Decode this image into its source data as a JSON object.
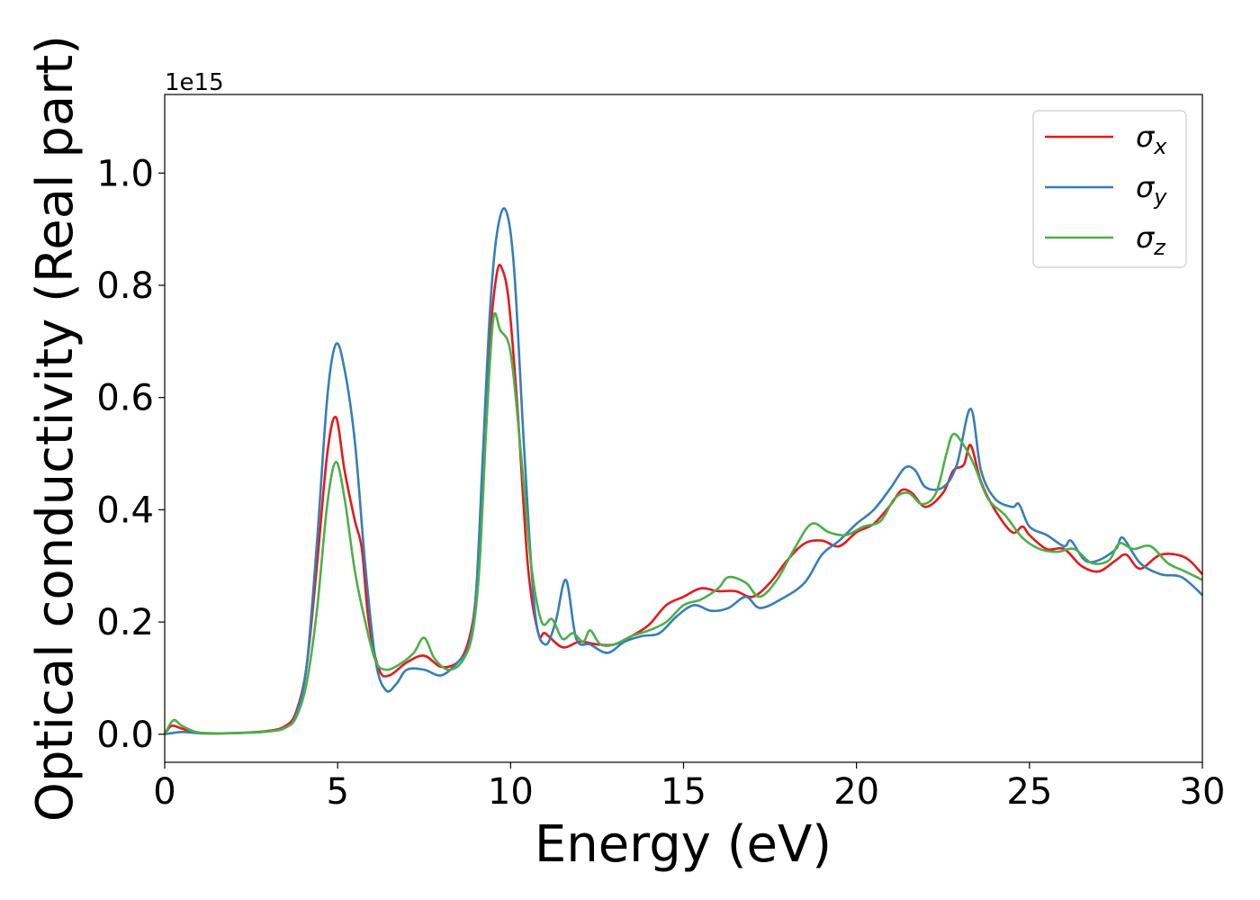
{
  "chart_data": {
    "type": "line",
    "xlabel": "Energy (eV)",
    "ylabel": "Optical conductivity (Real part)",
    "offset_text": "1e15",
    "xlim": [
      0,
      30
    ],
    "ylim": [
      -0.05,
      1.14
    ],
    "xticks": [
      0,
      5,
      10,
      15,
      20,
      25,
      30
    ],
    "yticks": [
      0.0,
      0.2,
      0.4,
      0.6,
      0.8,
      1.0
    ],
    "grid": false,
    "legend_position": "top-right",
    "series": [
      {
        "name": "σx",
        "color": "#e41a1c",
        "points": [
          [
            0,
            0.0
          ],
          [
            0.2,
            0.015
          ],
          [
            0.5,
            0.01
          ],
          [
            1,
            0.002
          ],
          [
            2,
            0.002
          ],
          [
            3,
            0.006
          ],
          [
            3.5,
            0.015
          ],
          [
            3.8,
            0.04
          ],
          [
            4.1,
            0.12
          ],
          [
            4.4,
            0.3
          ],
          [
            4.7,
            0.5
          ],
          [
            4.95,
            0.565
          ],
          [
            5.2,
            0.47
          ],
          [
            5.5,
            0.38
          ],
          [
            5.7,
            0.33
          ],
          [
            5.9,
            0.2
          ],
          [
            6.2,
            0.115
          ],
          [
            6.5,
            0.105
          ],
          [
            7,
            0.128
          ],
          [
            7.5,
            0.14
          ],
          [
            8,
            0.12
          ],
          [
            8.5,
            0.13
          ],
          [
            8.8,
            0.17
          ],
          [
            9.0,
            0.25
          ],
          [
            9.2,
            0.45
          ],
          [
            9.4,
            0.7
          ],
          [
            9.6,
            0.82
          ],
          [
            9.75,
            0.83
          ],
          [
            9.95,
            0.77
          ],
          [
            10.2,
            0.58
          ],
          [
            10.5,
            0.3
          ],
          [
            10.8,
            0.18
          ],
          [
            11,
            0.18
          ],
          [
            11.5,
            0.155
          ],
          [
            12,
            0.165
          ],
          [
            12.5,
            0.16
          ],
          [
            13,
            0.16
          ],
          [
            13.5,
            0.175
          ],
          [
            14,
            0.195
          ],
          [
            14.5,
            0.23
          ],
          [
            15,
            0.245
          ],
          [
            15.5,
            0.26
          ],
          [
            16,
            0.255
          ],
          [
            16.5,
            0.255
          ],
          [
            17,
            0.245
          ],
          [
            17.5,
            0.27
          ],
          [
            18,
            0.31
          ],
          [
            18.5,
            0.34
          ],
          [
            19,
            0.345
          ],
          [
            19.5,
            0.335
          ],
          [
            20,
            0.36
          ],
          [
            20.5,
            0.375
          ],
          [
            21,
            0.41
          ],
          [
            21.3,
            0.435
          ],
          [
            21.6,
            0.43
          ],
          [
            22,
            0.405
          ],
          [
            22.5,
            0.43
          ],
          [
            22.8,
            0.47
          ],
          [
            23.1,
            0.48
          ],
          [
            23.3,
            0.515
          ],
          [
            23.6,
            0.45
          ],
          [
            24,
            0.4
          ],
          [
            24.5,
            0.36
          ],
          [
            24.8,
            0.37
          ],
          [
            25,
            0.355
          ],
          [
            25.5,
            0.33
          ],
          [
            26,
            0.33
          ],
          [
            26.5,
            0.3
          ],
          [
            27,
            0.29
          ],
          [
            27.5,
            0.31
          ],
          [
            27.8,
            0.32
          ],
          [
            28.2,
            0.295
          ],
          [
            28.8,
            0.32
          ],
          [
            29.5,
            0.315
          ],
          [
            30,
            0.285
          ]
        ]
      },
      {
        "name": "σy",
        "color": "#377eb8",
        "points": [
          [
            0,
            0.0
          ],
          [
            0.5,
            0.004
          ],
          [
            1,
            0.002
          ],
          [
            2,
            0.002
          ],
          [
            3,
            0.005
          ],
          [
            3.5,
            0.012
          ],
          [
            3.8,
            0.035
          ],
          [
            4.1,
            0.12
          ],
          [
            4.4,
            0.34
          ],
          [
            4.7,
            0.6
          ],
          [
            4.95,
            0.695
          ],
          [
            5.2,
            0.65
          ],
          [
            5.5,
            0.52
          ],
          [
            5.8,
            0.3
          ],
          [
            6.1,
            0.13
          ],
          [
            6.4,
            0.078
          ],
          [
            6.7,
            0.09
          ],
          [
            7,
            0.115
          ],
          [
            7.5,
            0.115
          ],
          [
            8,
            0.105
          ],
          [
            8.5,
            0.13
          ],
          [
            8.8,
            0.16
          ],
          [
            9.0,
            0.25
          ],
          [
            9.2,
            0.5
          ],
          [
            9.4,
            0.75
          ],
          [
            9.6,
            0.89
          ],
          [
            9.85,
            0.935
          ],
          [
            10.1,
            0.83
          ],
          [
            10.4,
            0.5
          ],
          [
            10.7,
            0.22
          ],
          [
            11,
            0.16
          ],
          [
            11.3,
            0.2
          ],
          [
            11.6,
            0.275
          ],
          [
            11.9,
            0.17
          ],
          [
            12.3,
            0.16
          ],
          [
            12.8,
            0.145
          ],
          [
            13.3,
            0.165
          ],
          [
            13.8,
            0.175
          ],
          [
            14.3,
            0.18
          ],
          [
            14.8,
            0.21
          ],
          [
            15.3,
            0.23
          ],
          [
            15.8,
            0.22
          ],
          [
            16.3,
            0.225
          ],
          [
            16.8,
            0.245
          ],
          [
            17.2,
            0.225
          ],
          [
            17.8,
            0.24
          ],
          [
            18.5,
            0.27
          ],
          [
            19,
            0.32
          ],
          [
            19.5,
            0.345
          ],
          [
            20,
            0.375
          ],
          [
            20.5,
            0.4
          ],
          [
            21,
            0.44
          ],
          [
            21.4,
            0.475
          ],
          [
            21.7,
            0.47
          ],
          [
            22,
            0.44
          ],
          [
            22.5,
            0.44
          ],
          [
            22.9,
            0.48
          ],
          [
            23.3,
            0.58
          ],
          [
            23.6,
            0.47
          ],
          [
            24,
            0.42
          ],
          [
            24.5,
            0.405
          ],
          [
            24.7,
            0.41
          ],
          [
            25,
            0.37
          ],
          [
            25.5,
            0.355
          ],
          [
            26,
            0.335
          ],
          [
            26.2,
            0.345
          ],
          [
            26.6,
            0.31
          ],
          [
            27,
            0.31
          ],
          [
            27.5,
            0.33
          ],
          [
            27.7,
            0.35
          ],
          [
            28.2,
            0.305
          ],
          [
            28.8,
            0.285
          ],
          [
            29.4,
            0.28
          ],
          [
            30,
            0.248
          ]
        ]
      },
      {
        "name": "σz",
        "color": "#4daf4a",
        "points": [
          [
            0,
            0.0
          ],
          [
            0.25,
            0.025
          ],
          [
            0.5,
            0.015
          ],
          [
            1,
            0.003
          ],
          [
            2,
            0.002
          ],
          [
            3,
            0.005
          ],
          [
            3.5,
            0.012
          ],
          [
            3.8,
            0.03
          ],
          [
            4.1,
            0.09
          ],
          [
            4.4,
            0.22
          ],
          [
            4.7,
            0.41
          ],
          [
            4.95,
            0.485
          ],
          [
            5.2,
            0.42
          ],
          [
            5.5,
            0.29
          ],
          [
            5.8,
            0.2
          ],
          [
            6.1,
            0.13
          ],
          [
            6.4,
            0.115
          ],
          [
            6.8,
            0.125
          ],
          [
            7.2,
            0.145
          ],
          [
            7.5,
            0.172
          ],
          [
            7.8,
            0.135
          ],
          [
            8.2,
            0.115
          ],
          [
            8.6,
            0.13
          ],
          [
            8.9,
            0.18
          ],
          [
            9.1,
            0.3
          ],
          [
            9.3,
            0.55
          ],
          [
            9.5,
            0.74
          ],
          [
            9.7,
            0.72
          ],
          [
            10.0,
            0.68
          ],
          [
            10.3,
            0.5
          ],
          [
            10.6,
            0.3
          ],
          [
            10.9,
            0.2
          ],
          [
            11.2,
            0.205
          ],
          [
            11.5,
            0.17
          ],
          [
            11.8,
            0.18
          ],
          [
            12.1,
            0.165
          ],
          [
            12.3,
            0.185
          ],
          [
            12.6,
            0.16
          ],
          [
            13,
            0.16
          ],
          [
            13.5,
            0.175
          ],
          [
            14,
            0.185
          ],
          [
            14.5,
            0.2
          ],
          [
            15,
            0.23
          ],
          [
            15.5,
            0.24
          ],
          [
            16,
            0.26
          ],
          [
            16.3,
            0.28
          ],
          [
            16.8,
            0.27
          ],
          [
            17.2,
            0.245
          ],
          [
            17.7,
            0.275
          ],
          [
            18.2,
            0.33
          ],
          [
            18.7,
            0.375
          ],
          [
            19.2,
            0.36
          ],
          [
            19.7,
            0.355
          ],
          [
            20.2,
            0.37
          ],
          [
            20.7,
            0.38
          ],
          [
            21.1,
            0.42
          ],
          [
            21.5,
            0.43
          ],
          [
            21.9,
            0.41
          ],
          [
            22.3,
            0.43
          ],
          [
            22.6,
            0.5
          ],
          [
            22.8,
            0.535
          ],
          [
            23.1,
            0.515
          ],
          [
            23.4,
            0.48
          ],
          [
            23.8,
            0.42
          ],
          [
            24.3,
            0.39
          ],
          [
            24.8,
            0.35
          ],
          [
            25.3,
            0.33
          ],
          [
            25.8,
            0.325
          ],
          [
            26.3,
            0.33
          ],
          [
            26.8,
            0.305
          ],
          [
            27.3,
            0.31
          ],
          [
            27.6,
            0.34
          ],
          [
            28,
            0.33
          ],
          [
            28.5,
            0.335
          ],
          [
            29,
            0.305
          ],
          [
            29.5,
            0.29
          ],
          [
            30,
            0.275
          ]
        ]
      }
    ]
  }
}
